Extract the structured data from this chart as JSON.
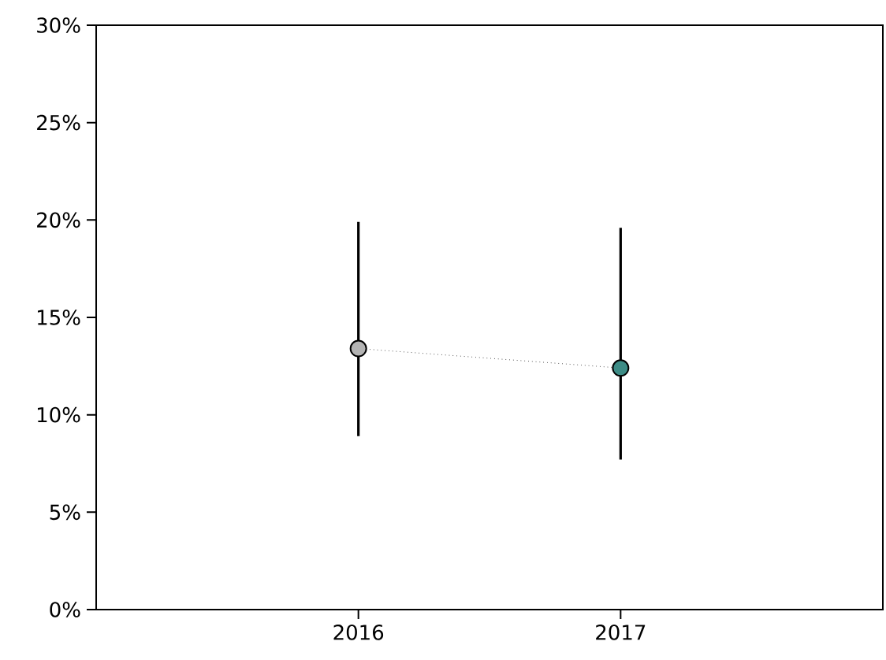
{
  "chart_data": {
    "type": "line",
    "categories": [
      "2016",
      "2017"
    ],
    "series": [
      {
        "values": [
          13.4,
          12.4
        ],
        "colors": [
          "#b4b4b4",
          "#3d8c86"
        ],
        "errors": [
          [
            8.9,
            19.9
          ],
          [
            7.7,
            19.6
          ]
        ]
      }
    ],
    "ylim": [
      0,
      30
    ],
    "yticks": [
      {
        "value": 0,
        "label": "0%"
      },
      {
        "value": 5,
        "label": "5%"
      },
      {
        "value": 10,
        "label": "10%"
      },
      {
        "value": 15,
        "label": "15%"
      },
      {
        "value": 20,
        "label": "20%"
      },
      {
        "value": 25,
        "label": "25%"
      },
      {
        "value": 30,
        "label": "30%"
      }
    ],
    "marker": "circle",
    "line_style": "dotted"
  }
}
